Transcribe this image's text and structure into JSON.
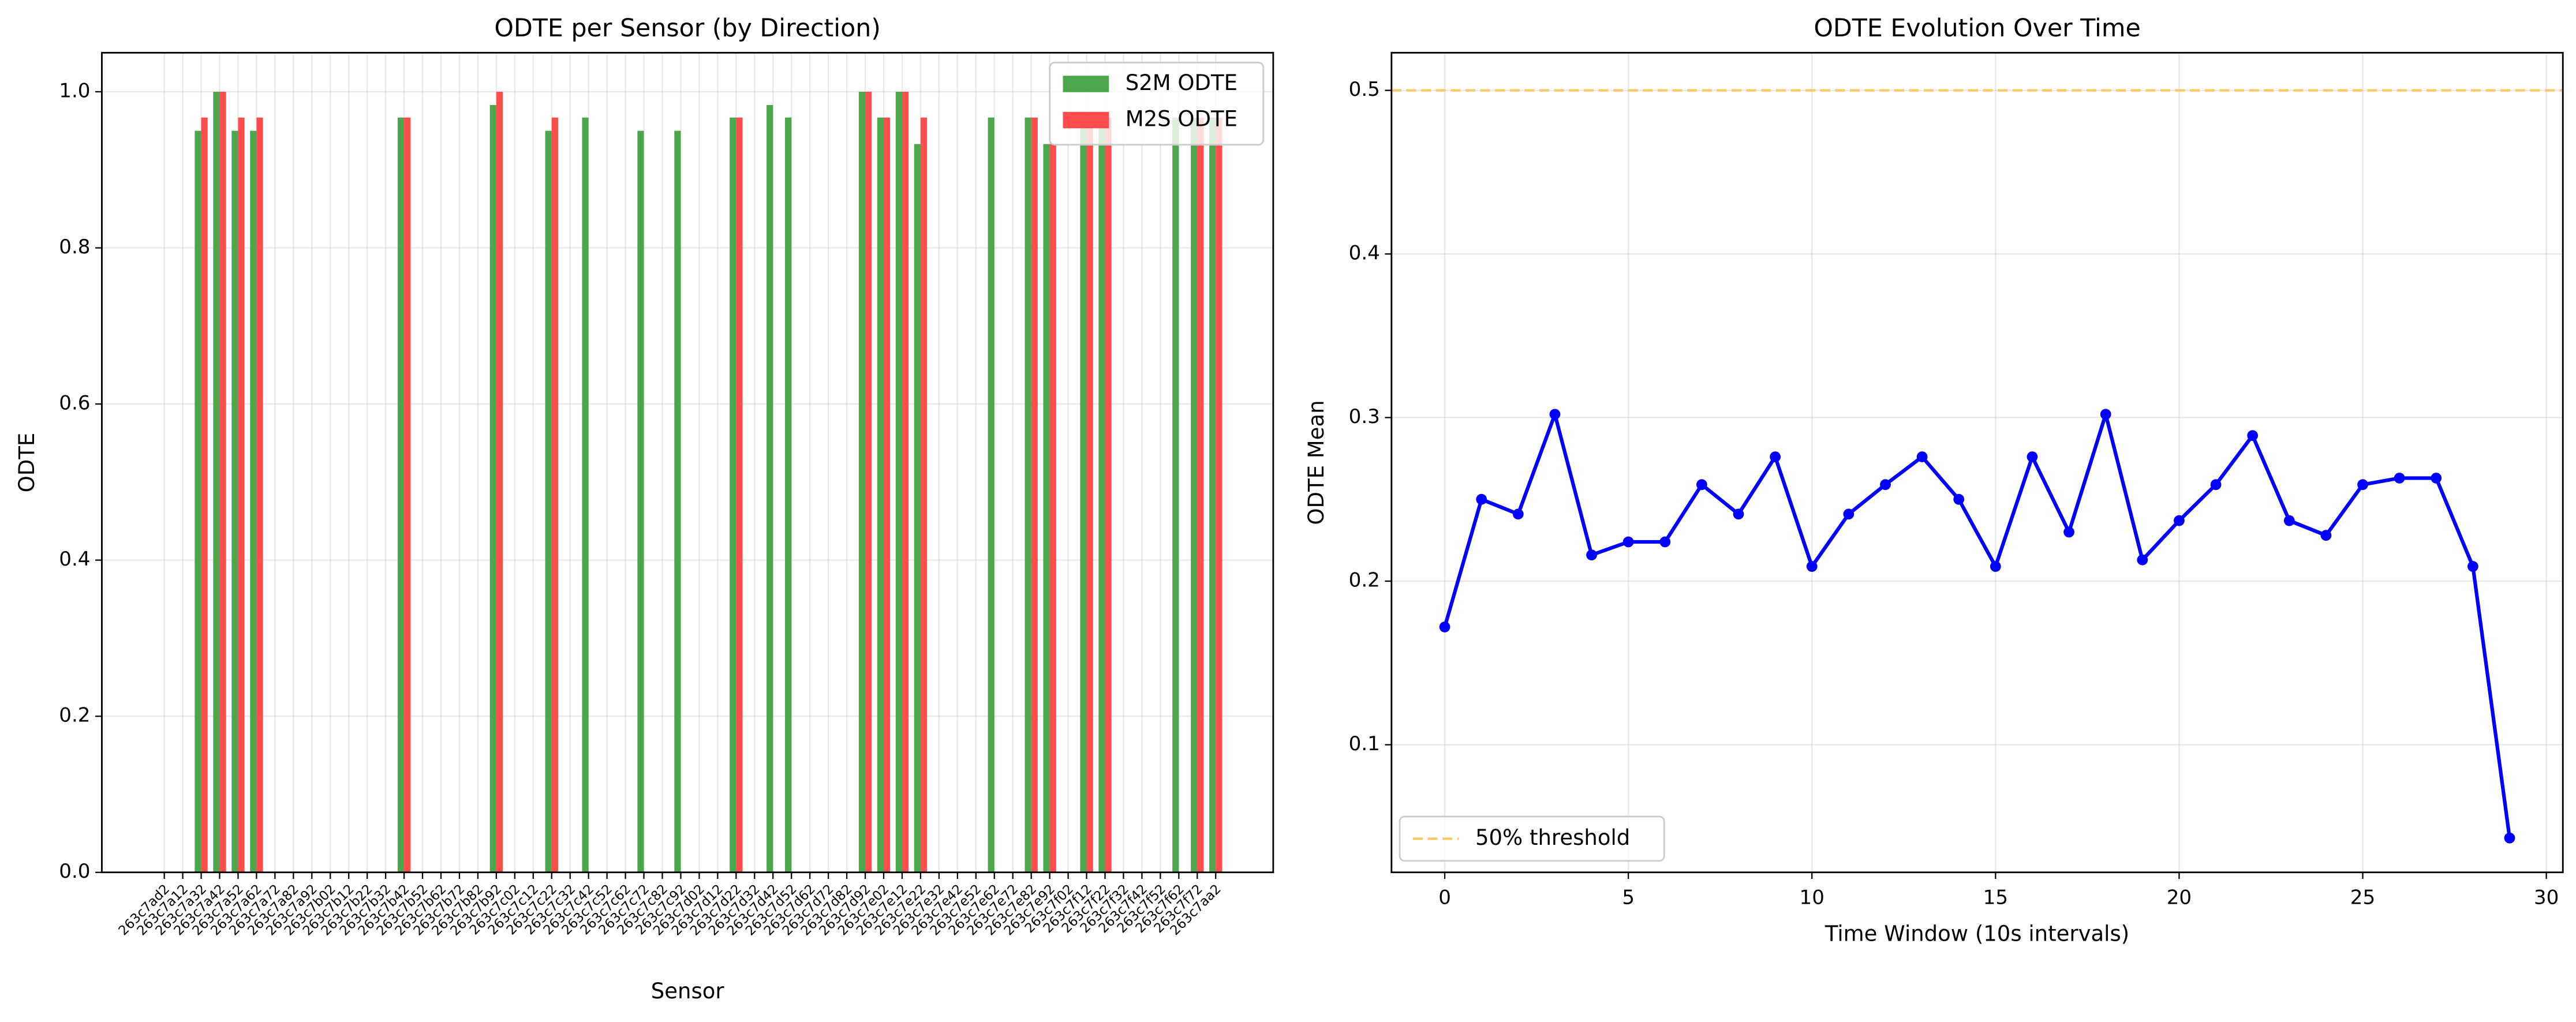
{
  "chart_data": [
    {
      "type": "bar",
      "title": "ODTE per Sensor (by Direction)",
      "xlabel": "Sensor",
      "ylabel": "ODTE",
      "categories": [
        "263c7ad2",
        "263c7a12",
        "263c7a32",
        "263c7a42",
        "263c7a52",
        "263c7a62",
        "263c7a72",
        "263c7a82",
        "263c7a92",
        "263c7b02",
        "263c7b12",
        "263c7b22",
        "263c7b32",
        "263c7b42",
        "263c7b52",
        "263c7b62",
        "263c7b72",
        "263c7b82",
        "263c7b92",
        "263c7c02",
        "263c7c12",
        "263c7c22",
        "263c7c32",
        "263c7c42",
        "263c7c52",
        "263c7c62",
        "263c7c72",
        "263c7c82",
        "263c7c92",
        "263c7d02",
        "263c7d12",
        "263c7d22",
        "263c7d32",
        "263c7d42",
        "263c7d52",
        "263c7d62",
        "263c7d72",
        "263c7d82",
        "263c7d92",
        "263c7e02",
        "263c7e12",
        "263c7e22",
        "263c7e32",
        "263c7e42",
        "263c7e52",
        "263c7e62",
        "263c7e72",
        "263c7e82",
        "263c7e92",
        "263c7f02",
        "263c7f12",
        "263c7f22",
        "263c7f32",
        "263c7f42",
        "263c7f52",
        "263c7f62",
        "263c7f72",
        "263c7aa2"
      ],
      "series": [
        {
          "name": "S2M ODTE",
          "color": "#4ca64c",
          "values": [
            0,
            0,
            0.95,
            1.0,
            0.95,
            0.95,
            0,
            0,
            0,
            0,
            0,
            0,
            0,
            0.967,
            0,
            0,
            0,
            0,
            0.983,
            0,
            0,
            0.95,
            0,
            0.967,
            0,
            0,
            0.95,
            0,
            0.95,
            0,
            0,
            0.967,
            0,
            0.983,
            0.967,
            0,
            0,
            0,
            1.0,
            0.967,
            1.0,
            0.933,
            0,
            0,
            0,
            0.967,
            0,
            0.967,
            0.933,
            0,
            0.967,
            0.967,
            0,
            0,
            0,
            0.967,
            0.967,
            0.967
          ]
        },
        {
          "name": "M2S ODTE",
          "color": "#ff4c4c",
          "values": [
            0,
            0,
            0.967,
            1.0,
            0.967,
            0.967,
            0,
            0,
            0,
            0,
            0,
            0,
            0,
            0.967,
            0,
            0,
            0,
            0,
            1.0,
            0,
            0,
            0.967,
            0,
            0,
            0,
            0,
            0,
            0,
            0,
            0,
            0,
            0.967,
            0,
            0,
            0,
            0,
            0,
            0,
            1.0,
            0.967,
            1.0,
            0.967,
            0,
            0,
            0,
            0,
            0,
            0.967,
            0.933,
            0,
            0.967,
            0.967,
            0,
            0,
            0,
            0,
            0.967,
            0.967
          ]
        }
      ],
      "ylim": [
        0,
        1.05
      ],
      "yticks": [
        {
          "value": 0,
          "label": "0.0"
        },
        0.2,
        0.4,
        0.6,
        0.8,
        {
          "value": 1,
          "label": "1.0"
        }
      ],
      "grid": true,
      "legend": "upper right"
    },
    {
      "type": "line",
      "title": "ODTE Evolution Over Time",
      "xlabel": "Time Window (10s intervals)",
      "ylabel": "ODTE Mean",
      "x": [
        0,
        1,
        2,
        3,
        4,
        5,
        6,
        7,
        8,
        9,
        10,
        11,
        12,
        13,
        14,
        15,
        16,
        17,
        18,
        19,
        20,
        21,
        22,
        23,
        24,
        25,
        26,
        27,
        28,
        29
      ],
      "series": [
        {
          "color": "#0000ff",
          "values": [
            0.172,
            0.25,
            0.241,
            0.302,
            0.216,
            0.224,
            0.224,
            0.259,
            0.241,
            0.276,
            0.209,
            0.241,
            0.259,
            0.276,
            0.25,
            0.209,
            0.276,
            0.23,
            0.302,
            0.213,
            0.237,
            0.259,
            0.289,
            0.237,
            0.228,
            0.259,
            0.263,
            0.263,
            0.209,
            0.043
          ]
        }
      ],
      "threshold": {
        "name": "50% threshold",
        "value": 0.5,
        "color": "#ffc864"
      },
      "xlim": [
        -1.45,
        30.45
      ],
      "xticks": [
        0,
        5,
        10,
        15,
        20,
        25,
        30
      ],
      "ylim": [
        0.022,
        0.523
      ],
      "yticks": [
        0.1,
        0.2,
        0.3,
        0.4,
        0.5
      ],
      "grid": true,
      "legend": "lower left"
    }
  ]
}
